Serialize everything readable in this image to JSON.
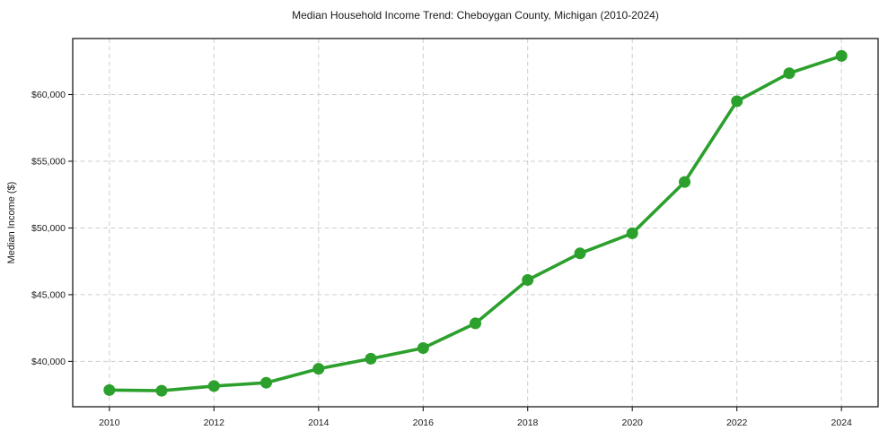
{
  "figure": {
    "background_color": "#ffffff"
  },
  "chart_data": {
    "type": "line",
    "title": "Median Household Income Trend: Cheboygan County, Michigan (2010-2024)",
    "xlabel": "",
    "ylabel": "Median Income ($)",
    "x": [
      2010,
      2011,
      2012,
      2013,
      2014,
      2015,
      2016,
      2017,
      2018,
      2019,
      2020,
      2021,
      2022,
      2023,
      2024
    ],
    "series": [
      {
        "name": "Median household income",
        "values": [
          37850,
          37800,
          38150,
          38400,
          39450,
          40200,
          41000,
          42850,
          46100,
          48100,
          49600,
          53450,
          59500,
          61600,
          62900
        ]
      }
    ],
    "x_ticks": [
      2010,
      2012,
      2014,
      2016,
      2018,
      2020,
      2022,
      2024
    ],
    "x_tick_labels": [
      "2010",
      "2012",
      "2014",
      "2016",
      "2018",
      "2020",
      "2022",
      "2024"
    ],
    "y_ticks": [
      40000,
      45000,
      50000,
      55000,
      60000
    ],
    "y_tick_labels": [
      "$40,000",
      "$45,000",
      "$50,000",
      "$55,000",
      "$60,000"
    ],
    "xlim": [
      2009.3,
      2024.7
    ],
    "ylim": [
      36600,
      64200
    ],
    "grid": true,
    "grid_style": "dashed",
    "legend_position": "none",
    "colors": {
      "line": "#2ca02c",
      "marker": "#2ca02c",
      "grid": "#cdcdcd",
      "axis_text": "#1a1a1a",
      "spine": "#1a1a1a"
    }
  }
}
